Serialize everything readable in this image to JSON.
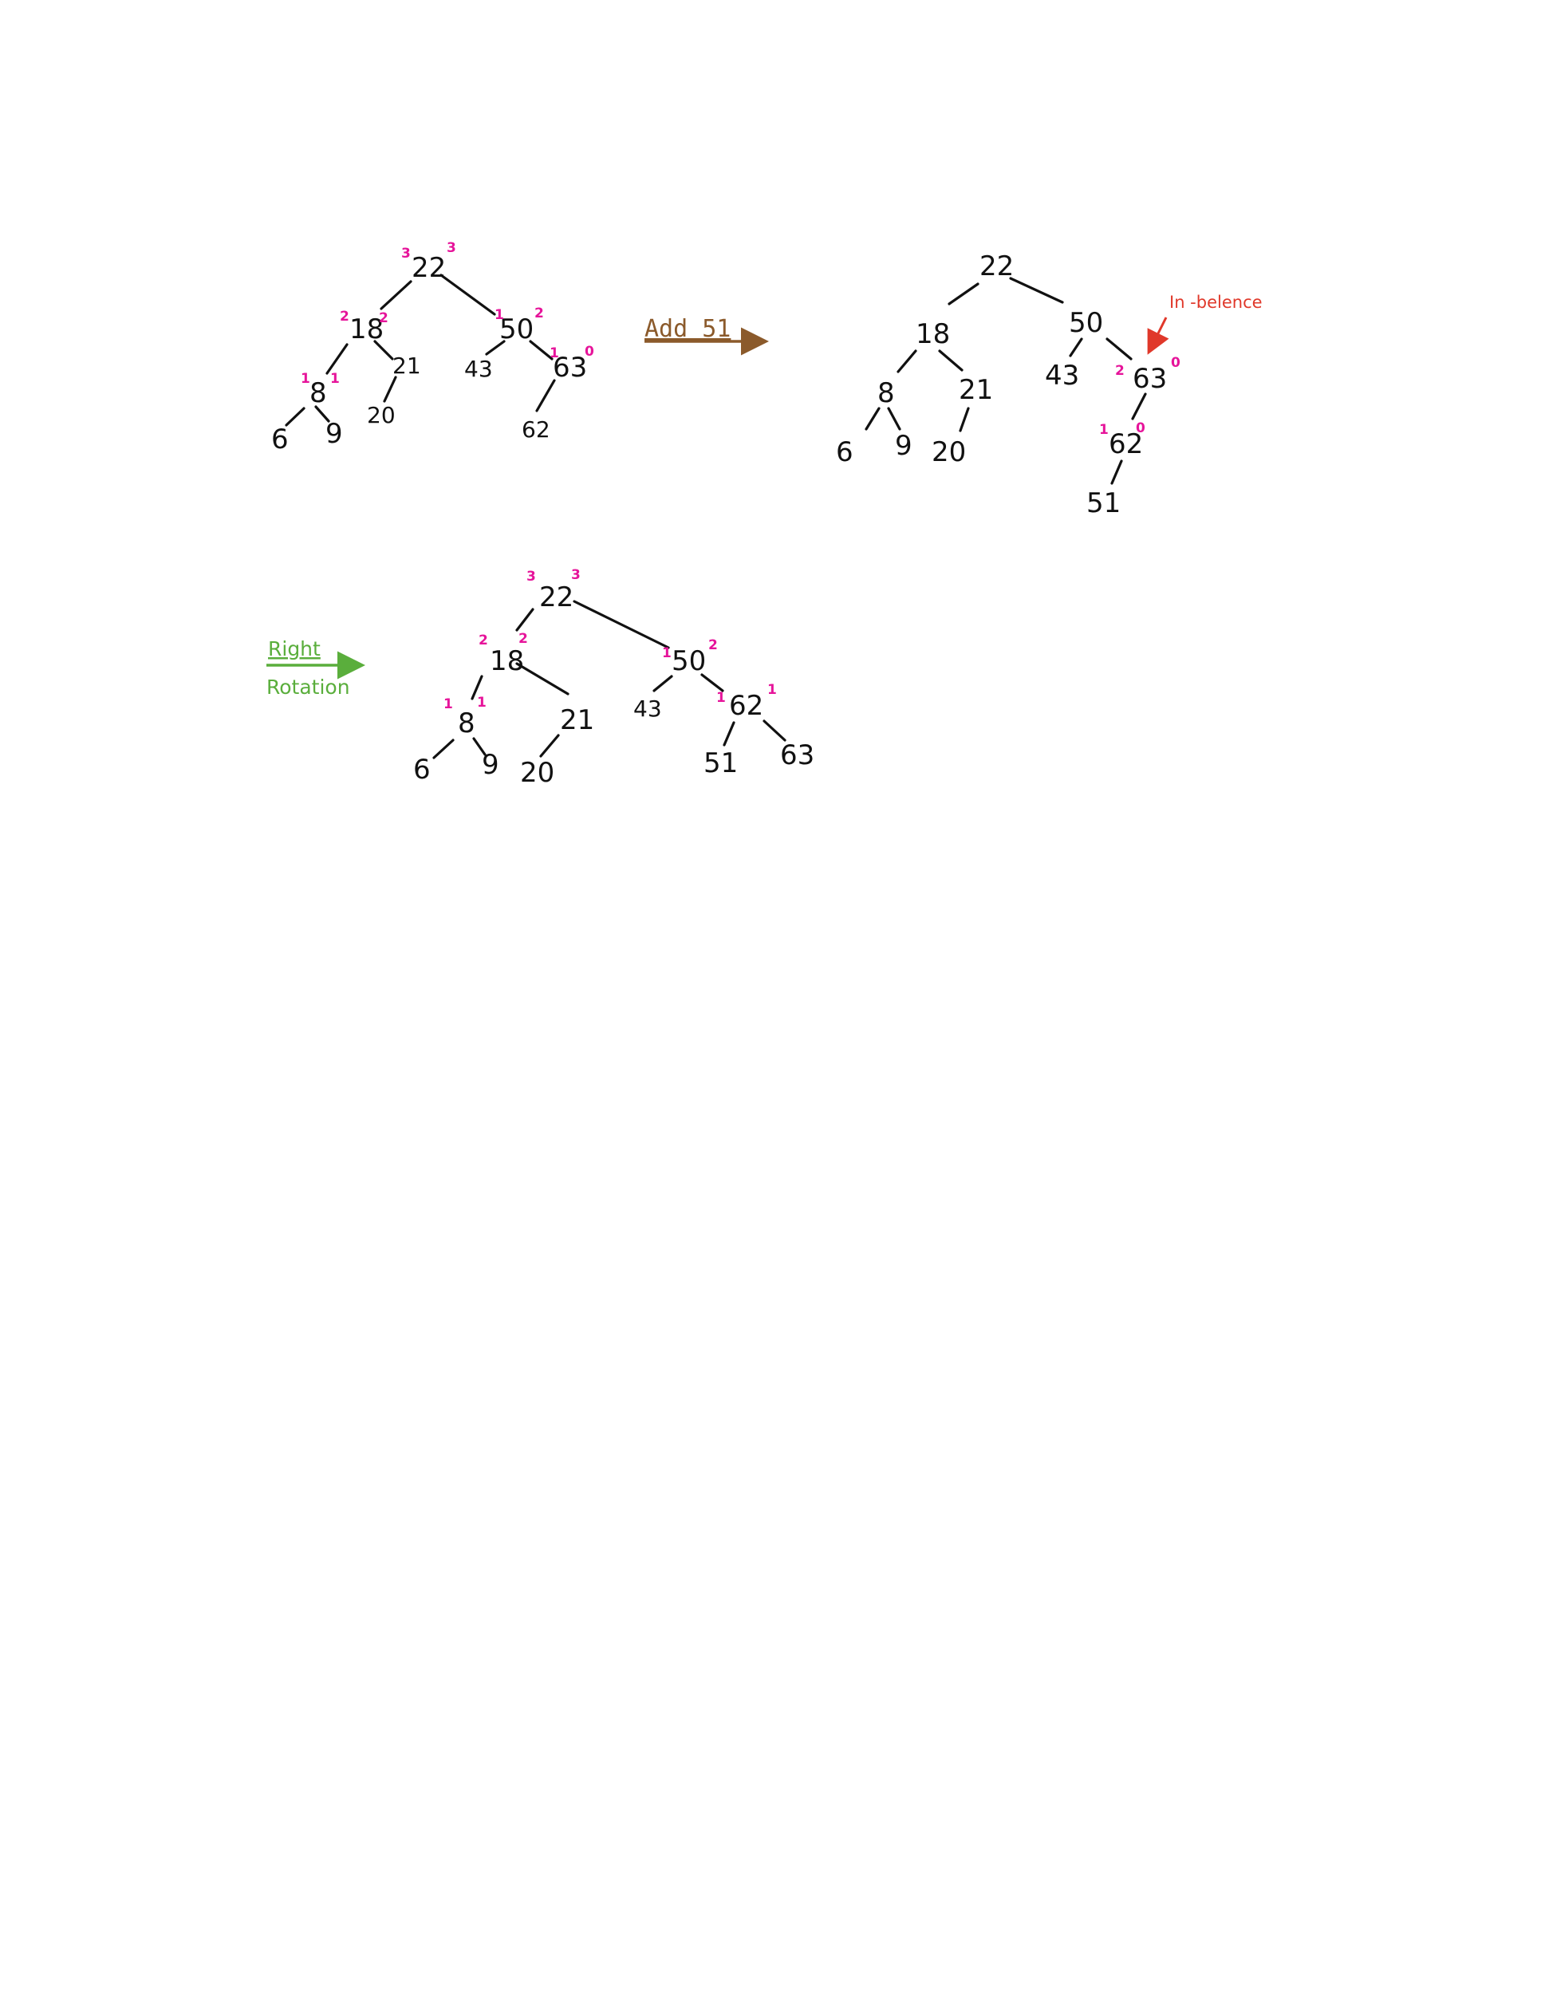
{
  "colors": {
    "ink": "#111111",
    "height_marks": "#e6149a",
    "add_arrow": "#8b5a2b",
    "imbalance": "#e0382a",
    "rotation": "#5aae3c"
  },
  "tree1": {
    "nodes": {
      "n22": "22",
      "n18": "18",
      "n50": "50",
      "n8": "8",
      "n21": "21",
      "n43": "43",
      "n63": "63",
      "n6": "6",
      "n9": "9",
      "n20": "20",
      "n62": "62"
    },
    "heights": {
      "n22_l": "3",
      "n22_r": "3",
      "n18_l": "2",
      "n18_r": "2",
      "n50_l": "1",
      "n50_r": "2",
      "n8_l": "1",
      "n8_r": "1",
      "n63_l": "1",
      "n63_r": "0"
    }
  },
  "step1": {
    "label": "Add 51"
  },
  "tree2": {
    "nodes": {
      "n22": "22",
      "n18": "18",
      "n50": "50",
      "n8": "8",
      "n21": "21",
      "n43": "43",
      "n63": "63",
      "n6": "6",
      "n9": "9",
      "n20": "20",
      "n62": "62",
      "n51": "51"
    },
    "heights": {
      "n63_l": "2",
      "n63_r": "0",
      "n62_l": "1",
      "n62_r": "0"
    },
    "note": "In -belence"
  },
  "step2": {
    "label_line1": "Right",
    "label_line2": "Rotation"
  },
  "tree3": {
    "nodes": {
      "n22": "22",
      "n18": "18",
      "n50": "50",
      "n8": "8",
      "n21": "21",
      "n43": "43",
      "n62": "62",
      "n6": "6",
      "n9": "9",
      "n20": "20",
      "n51": "51",
      "n63": "63"
    },
    "heights": {
      "n22_l": "3",
      "n22_r": "3",
      "n18_l": "2",
      "n18_r": "2",
      "n50_l": "1",
      "n50_r": "2",
      "n8_l": "1",
      "n8_r": "1",
      "n62_l": "1",
      "n62_r": "1"
    }
  }
}
